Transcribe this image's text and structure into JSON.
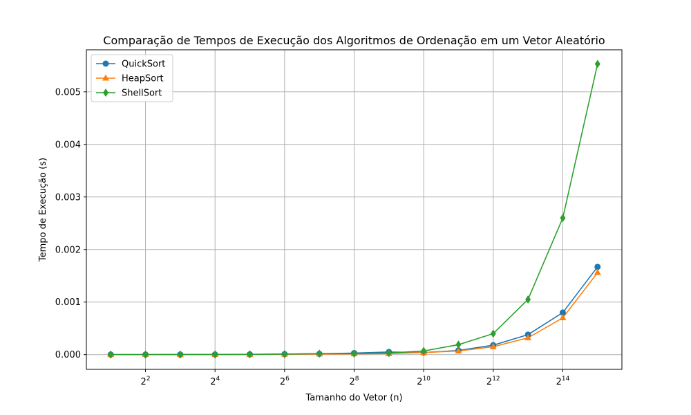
{
  "chart_data": {
    "type": "line",
    "title": "Comparação de Tempos de Execução dos Algoritmos de Ordenação em um Vetor Aleatório",
    "xlabel": "Tamanho do Vetor (n)",
    "ylabel": "Tempo de Execução (s)",
    "x_scale": "log2",
    "x": [
      2,
      4,
      8,
      16,
      32,
      64,
      128,
      256,
      512,
      1024,
      2048,
      4096,
      8192,
      16384,
      32768
    ],
    "xticks": [
      {
        "value": 4,
        "base": "2",
        "exp": "2"
      },
      {
        "value": 16,
        "base": "2",
        "exp": "4"
      },
      {
        "value": 64,
        "base": "2",
        "exp": "6"
      },
      {
        "value": 256,
        "base": "2",
        "exp": "8"
      },
      {
        "value": 1024,
        "base": "2",
        "exp": "10"
      },
      {
        "value": 4096,
        "base": "2",
        "exp": "12"
      },
      {
        "value": 16384,
        "base": "2",
        "exp": "14"
      }
    ],
    "yticks": [
      "0.000",
      "0.001",
      "0.002",
      "0.003",
      "0.004",
      "0.005"
    ],
    "ylim": [
      -0.00028,
      0.0058
    ],
    "grid": true,
    "legend_position": "top-left",
    "series": [
      {
        "name": "QuickSort",
        "color": "#1f77b4",
        "marker": "circle",
        "values": [
          1e-06,
          1e-06,
          2e-06,
          3e-06,
          5e-06,
          1e-05,
          1.5e-05,
          3e-05,
          5e-05,
          4e-05,
          8e-05,
          0.00018,
          0.00038,
          0.0008,
          0.00167
        ]
      },
      {
        "name": "HeapSort",
        "color": "#ff7f0e",
        "marker": "triangle",
        "values": [
          1e-06,
          1e-06,
          2e-06,
          3e-06,
          5e-06,
          8e-06,
          1.2e-05,
          1.5e-05,
          2e-05,
          4e-05,
          7e-05,
          0.00015,
          0.00032,
          0.0007,
          0.00156
        ]
      },
      {
        "name": "ShellSort",
        "color": "#2ca02c",
        "marker": "diamond",
        "values": [
          1e-06,
          1e-06,
          2e-06,
          3e-06,
          6e-06,
          1e-05,
          2e-05,
          2e-05,
          3e-05,
          7e-05,
          0.00019,
          0.0004,
          0.00105,
          0.0026,
          0.00553
        ]
      }
    ]
  }
}
